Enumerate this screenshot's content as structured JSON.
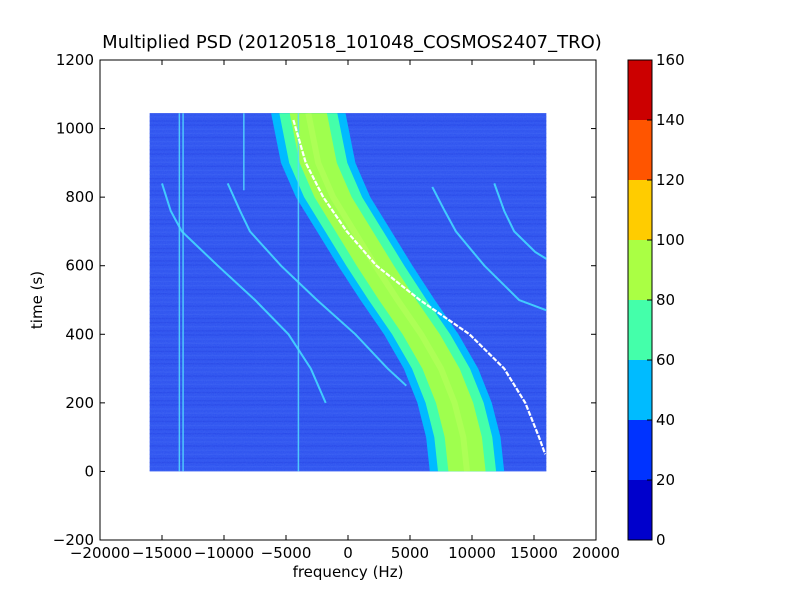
{
  "chart_data": {
    "type": "heatmap",
    "title": "Multiplied PSD (20120518_101048_COSMOS2407_TRO)",
    "xlabel": "frequency (Hz)",
    "ylabel": "time (s)",
    "xlim": [
      -20000,
      20000
    ],
    "ylim": [
      -200,
      1200
    ],
    "xticks": [
      "−20000",
      "−15000",
      "−10000",
      "−5000",
      "0",
      "5000",
      "10000",
      "15000",
      "20000"
    ],
    "yticks": [
      "−200",
      "0",
      "200",
      "400",
      "600",
      "800",
      "1000",
      "1200"
    ],
    "data_extent": {
      "x": [
        -16000,
        16000
      ],
      "y": [
        0,
        1045
      ]
    },
    "colorbar": {
      "ticks": [
        "0",
        "20",
        "40",
        "60",
        "80",
        "100",
        "120",
        "140",
        "160"
      ],
      "levels": [
        0,
        20,
        40,
        60,
        80,
        100,
        120,
        140,
        160
      ],
      "colors": [
        "#0000cc",
        "#0033ff",
        "#00bbff",
        "#44ffaa",
        "#aaff44",
        "#ffcc00",
        "#ff5500",
        "#cc0000"
      ]
    },
    "background_color": "#2f54f0",
    "band": {
      "x_center_at_y": [
        [
          1045,
          -3200
        ],
        [
          900,
          -2400
        ],
        [
          800,
          -1200
        ],
        [
          700,
          500
        ],
        [
          600,
          2200
        ],
        [
          500,
          4000
        ],
        [
          400,
          5900
        ],
        [
          300,
          7500
        ],
        [
          200,
          8600
        ],
        [
          100,
          9300
        ],
        [
          0,
          9600
        ]
      ],
      "half_width_hz": 3000
    },
    "doppler_line": {
      "color": "#ffffff",
      "points": [
        [
          1025,
          -4400
        ],
        [
          900,
          -3400
        ],
        [
          800,
          -2000
        ],
        [
          700,
          -100
        ],
        [
          600,
          2300
        ],
        [
          500,
          5800
        ],
        [
          400,
          9800
        ],
        [
          300,
          12600
        ],
        [
          200,
          14300
        ],
        [
          100,
          15400
        ],
        [
          50,
          15900
        ]
      ]
    },
    "faint_lines": [
      [
        [
          840,
          -15000
        ],
        [
          760,
          -14300
        ],
        [
          700,
          -13400
        ],
        [
          600,
          -10500
        ],
        [
          500,
          -7500
        ],
        [
          400,
          -4800
        ],
        [
          300,
          -3000
        ],
        [
          200,
          -1800
        ]
      ],
      [
        [
          840,
          -9700
        ],
        [
          760,
          -8700
        ],
        [
          700,
          -7900
        ],
        [
          600,
          -5400
        ],
        [
          500,
          -2500
        ],
        [
          400,
          600
        ],
        [
          300,
          3200
        ],
        [
          250,
          4700
        ]
      ],
      [
        [
          830,
          6800
        ],
        [
          760,
          7800
        ],
        [
          700,
          8700
        ],
        [
          600,
          11000
        ],
        [
          500,
          13800
        ],
        [
          470,
          16000
        ]
      ],
      [
        [
          840,
          11800
        ],
        [
          760,
          12600
        ],
        [
          700,
          13400
        ],
        [
          640,
          15100
        ],
        [
          620,
          16000
        ]
      ]
    ],
    "vertical_lines": [
      [
        -13300,
        0,
        1045
      ],
      [
        -13600,
        0,
        1045
      ],
      [
        -4000,
        0,
        1045
      ],
      [
        -8400,
        820,
        1045
      ]
    ]
  }
}
